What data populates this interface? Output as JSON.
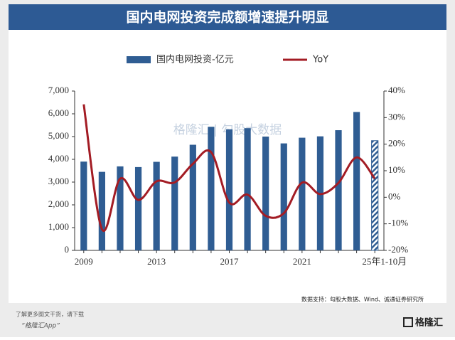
{
  "chart_data": {
    "type": "bar-line",
    "title": "国内电网投资完成额增速提升明显",
    "categories": [
      "2009",
      null,
      null,
      null,
      "2013",
      null,
      null,
      null,
      "2017",
      null,
      null,
      null,
      "2021",
      null,
      null,
      null,
      "25年1-10月"
    ],
    "series": [
      {
        "name": "国内电网投资-亿元",
        "color": "#2f5d93",
        "type": "bar",
        "hatched_last": true,
        "values": [
          3900,
          3450,
          3690,
          3660,
          3890,
          4120,
          4640,
          5430,
          5320,
          5370,
          5000,
          4700,
          4950,
          5010,
          5280,
          6080,
          4820
        ]
      },
      {
        "name": "YoY",
        "color": "#a31c24",
        "type": "line",
        "axis": "y2",
        "values": [
          35,
          -12,
          7,
          -1,
          6,
          5.6,
          12.6,
          17,
          -2,
          1,
          -7,
          -6,
          5.5,
          1.2,
          5.4,
          15,
          7
        ]
      }
    ],
    "ylim": [
      0,
      7000
    ],
    "yticks": [
      0,
      {
        "value": 1000,
        "label": "1,000"
      },
      {
        "value": 2000,
        "label": "2,000"
      },
      {
        "value": 3000,
        "label": "3,000"
      },
      {
        "value": 4000,
        "label": "4,000"
      },
      {
        "value": 5000,
        "label": "5,000"
      },
      {
        "value": 6000,
        "label": "6,000"
      },
      {
        "value": 7000,
        "label": "7,000"
      }
    ],
    "y2lim": [
      -20,
      40
    ],
    "y2ticks": [
      {
        "value": -20,
        "label": "-20%"
      },
      {
        "value": -10,
        "label": "-10%"
      },
      {
        "value": 0,
        "label": "0%"
      },
      {
        "value": 10,
        "label": "10%"
      },
      {
        "value": 20,
        "label": "20%"
      },
      {
        "value": 30,
        "label": "30%"
      },
      {
        "value": 40,
        "label": "40%"
      }
    ],
    "watermark": "格隆汇 | 勾股大数据",
    "source": "数据支持：勾股大数据、Wind、诚通证券研究所"
  },
  "footer": {
    "line1": "了解更多图文干货，请下载",
    "line2": "“格隆汇App”",
    "logo": "格隆汇"
  }
}
